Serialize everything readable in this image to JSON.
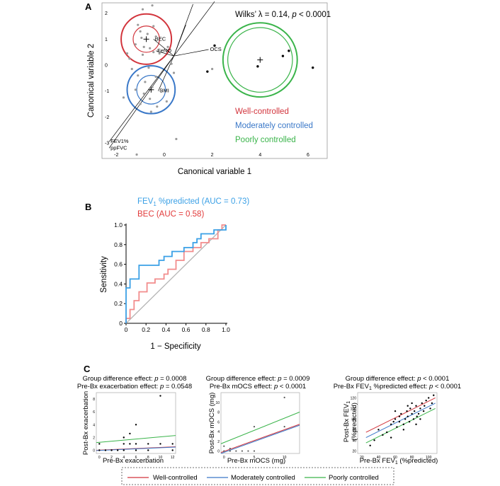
{
  "panels": {
    "a": "A",
    "b": "B",
    "c": "C"
  },
  "colors": {
    "well": "#d2343c",
    "moderate": "#3a78c8",
    "poor": "#3ab44a",
    "gray": "#9a9a9a",
    "roc_fev": "#3aa0e6",
    "roc_bec": "#f28c8c"
  },
  "chart_data": [
    {
      "type": "scatter",
      "id": "canonical",
      "xlabel": "Canonical variable 1",
      "ylabel": "Canonical variable 2",
      "xlim": [
        -2.6,
        6.8
      ],
      "ylim": [
        -3.6,
        2.4
      ],
      "xticks": [
        -2,
        0,
        2,
        4,
        6
      ],
      "yticks": [
        -3,
        -2,
        -1,
        0,
        1,
        2
      ],
      "annotation": {
        "prefix": "Wilks’ λ = 0.14, ",
        "p": "p",
        "suffix": " < 0.0001"
      },
      "legend": [
        "Well-controlled",
        "Moderately controlled",
        "Poorly controlled"
      ],
      "legend_placement": "bottom-right",
      "groups": [
        {
          "name": "Well-controlled",
          "center": [
            -0.75,
            1.0
          ],
          "r_outer": 1.05,
          "r_inner": 0.55
        },
        {
          "name": "Moderately controlled",
          "center": [
            -0.55,
            -0.95
          ],
          "r_outer": 1.0,
          "r_inner": 0.6
        },
        {
          "name": "Poorly controlled",
          "center": [
            4.0,
            0.2
          ],
          "r_outer": 1.55,
          "r_inner": 1.35
        }
      ],
      "gray_points": [
        [
          -0.5,
          2.3
        ],
        [
          -0.9,
          2.15
        ],
        [
          -1.1,
          1.55
        ],
        [
          -0.45,
          1.5
        ],
        [
          -1.0,
          1.3
        ],
        [
          -0.7,
          1.2
        ],
        [
          -0.35,
          1.1
        ],
        [
          -0.95,
          1.05
        ],
        [
          -1.2,
          0.8
        ],
        [
          -0.85,
          0.7
        ],
        [
          -0.6,
          0.65
        ],
        [
          -0.45,
          0.5
        ],
        [
          -0.9,
          0.4
        ],
        [
          -0.2,
          0.45
        ],
        [
          -1.45,
          0.25
        ],
        [
          0.15,
          0.7
        ],
        [
          -0.65,
          -0.1
        ],
        [
          -1.1,
          -0.4
        ],
        [
          -0.35,
          -0.45
        ],
        [
          -0.8,
          -0.65
        ],
        [
          -0.5,
          -0.85
        ],
        [
          -1.2,
          -0.95
        ],
        [
          -0.85,
          -1.1
        ],
        [
          -0.15,
          -1.0
        ],
        [
          -0.6,
          -1.3
        ],
        [
          -1.0,
          -1.5
        ],
        [
          -0.3,
          -1.6
        ],
        [
          0.1,
          -1.4
        ],
        [
          -0.55,
          -1.8
        ],
        [
          -1.35,
          -0.15
        ],
        [
          -1.7,
          -1.25
        ],
        [
          0.4,
          -0.3
        ],
        [
          0.5,
          -2.85
        ],
        [
          -1.15,
          -3.45
        ],
        [
          2.0,
          -0.15
        ],
        [
          -1.55,
          0.45
        ],
        [
          0.3,
          0.05
        ]
      ],
      "black_points": [
        [
          2.1,
          0.75
        ],
        [
          1.8,
          -0.25
        ],
        [
          3.9,
          -0.05
        ],
        [
          4.95,
          0.35
        ],
        [
          5.2,
          0.55
        ],
        [
          6.2,
          -0.1
        ]
      ],
      "vectors": [
        {
          "label": "BEC",
          "end": [
            -0.45,
            1.0
          ]
        },
        {
          "label": "FeNO",
          "end": [
            -0.35,
            0.55
          ]
        },
        {
          "label": "",
          "end": [
            0.9,
            1.55
          ]
        },
        {
          "label": "",
          "end": [
            1.2,
            2.35
          ]
        },
        {
          "label": "",
          "end": [
            2.1,
            2.45
          ]
        },
        {
          "label": "OCS",
          "end": [
            1.85,
            0.6
          ]
        },
        {
          "label": "",
          "end": [
            0.4,
            0.35
          ]
        },
        {
          "label": "BMI",
          "end": [
            -0.25,
            -1.0
          ]
        },
        {
          "label": "FEV1%",
          "end": [
            -2.3,
            -2.95
          ]
        },
        {
          "label": "ppFVC",
          "end": [
            -2.3,
            -3.2
          ]
        }
      ],
      "vector_origin": [
        0.4,
        0.35
      ]
    },
    {
      "type": "line",
      "id": "roc",
      "xlabel": "1 − Specificity",
      "ylabel": "Sensitivity",
      "xlim": [
        0,
        1
      ],
      "ylim": [
        0,
        1
      ],
      "xticks": [
        0,
        0.2,
        0.4,
        0.6,
        0.8,
        1.0
      ],
      "yticks": [
        0,
        0.2,
        0.4,
        0.6,
        0.8,
        1.0
      ],
      "xtick_labels": [
        "0",
        "0.2",
        "0.4",
        "0.6",
        "0.8",
        "1.0"
      ],
      "ytick_labels": [
        "0",
        "0.2",
        "0.4",
        "0.6",
        "0.8",
        "1.0"
      ],
      "legend": [
        {
          "main": "FEV",
          "sub": "1",
          "rest": " %predicted (AUC = 0.73)"
        },
        {
          "main": "BEC (AUC = 0.58)",
          "sub": "",
          "rest": ""
        }
      ],
      "series": [
        {
          "name": "FEV1 %predicted",
          "points": [
            [
              0,
              0
            ],
            [
              0,
              0.36
            ],
            [
              0.04,
              0.36
            ],
            [
              0.04,
              0.45
            ],
            [
              0.13,
              0.45
            ],
            [
              0.13,
              0.59
            ],
            [
              0.33,
              0.59
            ],
            [
              0.33,
              0.64
            ],
            [
              0.38,
              0.64
            ],
            [
              0.38,
              0.68
            ],
            [
              0.46,
              0.68
            ],
            [
              0.46,
              0.73
            ],
            [
              0.58,
              0.73
            ],
            [
              0.58,
              0.77
            ],
            [
              0.67,
              0.77
            ],
            [
              0.67,
              0.82
            ],
            [
              0.71,
              0.82
            ],
            [
              0.71,
              0.86
            ],
            [
              0.75,
              0.86
            ],
            [
              0.75,
              0.91
            ],
            [
              0.88,
              0.91
            ],
            [
              0.88,
              0.95
            ],
            [
              1,
              0.95
            ],
            [
              1,
              1
            ]
          ]
        },
        {
          "name": "BEC",
          "points": [
            [
              0,
              0
            ],
            [
              0,
              0.05
            ],
            [
              0.04,
              0.05
            ],
            [
              0.04,
              0.14
            ],
            [
              0.08,
              0.14
            ],
            [
              0.08,
              0.23
            ],
            [
              0.13,
              0.23
            ],
            [
              0.13,
              0.32
            ],
            [
              0.21,
              0.32
            ],
            [
              0.21,
              0.41
            ],
            [
              0.29,
              0.41
            ],
            [
              0.29,
              0.45
            ],
            [
              0.38,
              0.45
            ],
            [
              0.38,
              0.5
            ],
            [
              0.42,
              0.5
            ],
            [
              0.42,
              0.55
            ],
            [
              0.5,
              0.55
            ],
            [
              0.5,
              0.64
            ],
            [
              0.58,
              0.64
            ],
            [
              0.58,
              0.73
            ],
            [
              0.67,
              0.73
            ],
            [
              0.67,
              0.77
            ],
            [
              0.75,
              0.77
            ],
            [
              0.75,
              0.82
            ],
            [
              0.83,
              0.82
            ],
            [
              0.83,
              0.86
            ],
            [
              0.92,
              0.86
            ],
            [
              0.92,
              0.95
            ],
            [
              0.96,
              0.95
            ],
            [
              0.96,
              1
            ],
            [
              1,
              1
            ]
          ]
        }
      ]
    },
    {
      "type": "scatter",
      "id": "exacerbation",
      "title_lines": [
        {
          "pre": "Group difference effect: ",
          "p": "p",
          "post": " = 0.0008"
        },
        {
          "pre": "Pre-Bx exacerbation effect: ",
          "p": "p",
          "post": " = 0.0548"
        }
      ],
      "xlabel": "Pre-Bx exacerbation",
      "ylabel": "Post-Bx exacerbation",
      "xlim": [
        -0.5,
        12.5
      ],
      "ylim": [
        -0.5,
        9
      ],
      "xticks": [
        0,
        2,
        4,
        6,
        8,
        10,
        12
      ],
      "yticks": [
        0,
        2,
        4,
        6,
        8
      ],
      "points": [
        [
          0,
          1
        ],
        [
          0,
          0
        ],
        [
          1,
          0
        ],
        [
          2,
          0
        ],
        [
          3,
          0
        ],
        [
          4,
          0
        ],
        [
          4,
          1
        ],
        [
          4,
          2
        ],
        [
          5,
          2.6
        ],
        [
          5,
          1
        ],
        [
          6,
          4
        ],
        [
          6,
          0
        ],
        [
          8,
          0
        ],
        [
          10,
          8.5
        ],
        [
          10,
          1
        ],
        [
          12,
          1
        ],
        [
          12,
          0
        ],
        [
          6,
          1
        ],
        [
          8,
          1
        ]
      ],
      "lines": [
        {
          "group": "Poorly controlled",
          "y0": 1.2,
          "y1": 2.3
        },
        {
          "group": "Well-controlled",
          "y0": 0.0,
          "y1": 0.55
        },
        {
          "group": "Moderately controlled",
          "y0": -0.05,
          "y1": 0.5
        }
      ]
    },
    {
      "type": "scatter",
      "id": "mocs",
      "title_lines": [
        {
          "pre": "Group difference effect: ",
          "p": "p",
          "post": " = 0.0009"
        },
        {
          "pre": "Pre-Bx mOCS effect: ",
          "p": "p",
          "post": " < 0.0001"
        }
      ],
      "xlabel": "Pre-Bx mOCS (mg)",
      "ylabel": "Post-Bx mOCS (mg)",
      "xlim": [
        -0.5,
        12.5
      ],
      "ylim": [
        -0.5,
        12
      ],
      "xticks": [
        0,
        5,
        10
      ],
      "yticks": [
        0,
        2,
        4,
        6,
        8,
        10
      ],
      "points": [
        [
          0,
          0
        ],
        [
          1,
          0
        ],
        [
          2,
          0
        ],
        [
          3,
          0
        ],
        [
          4,
          0
        ],
        [
          5,
          0
        ],
        [
          5,
          5
        ],
        [
          10,
          11
        ],
        [
          10,
          5
        ],
        [
          0,
          1
        ],
        [
          1,
          0.5
        ]
      ],
      "lines": [
        {
          "group": "Poorly controlled",
          "y0": 1.5,
          "y1": 8.0
        },
        {
          "group": "Well-controlled",
          "y0": -0.3,
          "y1": 5.5
        },
        {
          "group": "Moderately controlled",
          "y0": -0.5,
          "y1": 5.3
        }
      ]
    },
    {
      "type": "scatter",
      "id": "fev1",
      "title_lines": [
        {
          "pre": "Group difference effect: ",
          "p": "p",
          "post": " < 0.0001"
        },
        {
          "pre": "Pre-Bx FEV",
          "sub": "1",
          "mid": " %predicted effect: ",
          "p": "p",
          "post": " < 0.0001"
        }
      ],
      "xlabel": {
        "main": "Pre-Bx FEV",
        "sub": "1",
        "rest": " (%predicted)"
      },
      "ylabel_lines": [
        {
          "main": "Post-Bx FEV",
          "sub": "1"
        },
        {
          "main": "(%predicted)",
          "sub": ""
        }
      ],
      "xlim": [
        15,
        110
      ],
      "ylim": [
        15,
        130
      ],
      "xticks": [
        20,
        40,
        60,
        80,
        100
      ],
      "yticks": [
        20,
        40,
        60,
        80,
        100,
        120
      ],
      "points": [
        [
          30,
          30
        ],
        [
          35,
          40
        ],
        [
          40,
          60
        ],
        [
          45,
          50
        ],
        [
          50,
          55
        ],
        [
          55,
          70
        ],
        [
          58,
          75
        ],
        [
          60,
          80
        ],
        [
          62,
          65
        ],
        [
          65,
          85
        ],
        [
          67,
          90
        ],
        [
          70,
          70
        ],
        [
          72,
          80
        ],
        [
          74,
          95
        ],
        [
          75,
          85
        ],
        [
          77,
          75
        ],
        [
          78,
          100
        ],
        [
          80,
          90
        ],
        [
          82,
          80
        ],
        [
          83,
          95
        ],
        [
          85,
          105
        ],
        [
          86,
          85
        ],
        [
          88,
          90
        ],
        [
          90,
          100
        ],
        [
          92,
          110
        ],
        [
          94,
          95
        ],
        [
          95,
          105
        ],
        [
          97,
          115
        ],
        [
          100,
          120
        ],
        [
          102,
          100
        ],
        [
          104,
          110
        ],
        [
          106,
          125
        ],
        [
          60,
          95
        ],
        [
          70,
          60
        ],
        [
          80,
          110
        ],
        [
          90,
          80
        ],
        [
          55,
          45
        ],
        [
          65,
          75
        ],
        [
          75,
          105
        ],
        [
          85,
          70
        ]
      ],
      "lines": [
        {
          "group": "Poorly controlled",
          "x0": 25,
          "y0": 35,
          "x1": 108,
          "y1": 100
        },
        {
          "group": "Well-controlled",
          "x0": 25,
          "y0": 55,
          "x1": 108,
          "y1": 120
        },
        {
          "group": "Moderately controlled",
          "x0": 25,
          "y0": 45,
          "x1": 108,
          "y1": 110
        }
      ]
    }
  ],
  "bottom_legend": [
    "Well-controlled",
    "Moderately controlled",
    "Poorly controlled"
  ]
}
